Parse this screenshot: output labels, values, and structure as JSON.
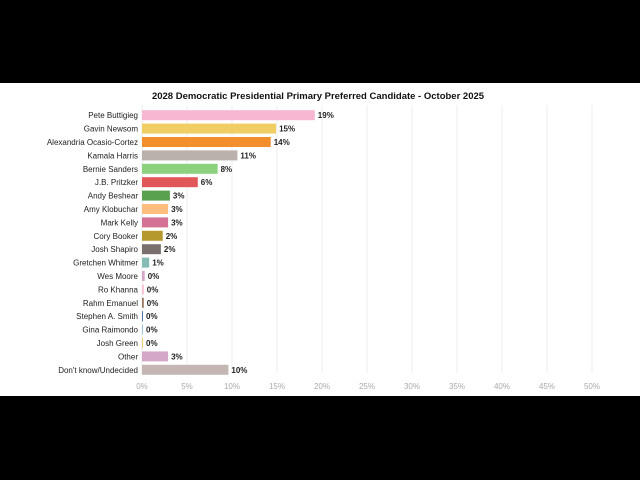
{
  "chart_data": {
    "type": "bar",
    "orientation": "horizontal",
    "title": "2028 Democratic Presidential Primary Preferred Candidate - October 2025",
    "xlabel": "",
    "ylabel": "",
    "xlim": [
      0,
      50
    ],
    "grid": true,
    "legend": "none",
    "ticks": [
      "0%",
      "5%",
      "10%",
      "15%",
      "20%",
      "25%",
      "30%",
      "35%",
      "40%",
      "45%",
      "50%"
    ],
    "tick_values": [
      0,
      5,
      10,
      15,
      20,
      25,
      30,
      35,
      40,
      45,
      50
    ],
    "categories": [
      "Pete Buttigieg",
      "Gavin Newsom",
      "Alexandria Ocasio-Cortez",
      "Kamala Harris",
      "Bernie Sanders",
      "J.B. Pritzker",
      "Andy Beshear",
      "Amy Klobuchar",
      "Mark Kelly",
      "Cory Booker",
      "Josh Shapiro",
      "Gretchen Whitmer",
      "Wes Moore",
      "Ro Khanna",
      "Rahm Emanuel",
      "Stephen A. Smith",
      "Gina Raimondo",
      "Josh Green",
      "Other",
      "Don't know/Undecided"
    ],
    "values": [
      19,
      15,
      14,
      11,
      8,
      6,
      3,
      3,
      3,
      2,
      2,
      1,
      0,
      0,
      0,
      0,
      0,
      0,
      3,
      10
    ],
    "bar_values": [
      19.2,
      14.9,
      14.3,
      10.6,
      8.4,
      6.2,
      3.1,
      2.9,
      2.9,
      2.3,
      2.1,
      0.8,
      0.3,
      0.2,
      0.2,
      0.1,
      0.1,
      0.1,
      2.9,
      9.6
    ],
    "value_labels": [
      "19%",
      "15%",
      "14%",
      "11%",
      "8%",
      "6%",
      "3%",
      "3%",
      "3%",
      "2%",
      "2%",
      "1%",
      "0%",
      "0%",
      "0%",
      "0%",
      "0%",
      "0%",
      "3%",
      "10%"
    ],
    "colors": [
      "#f7b6d2",
      "#f1ce63",
      "#f28e2b",
      "#bab0ac",
      "#8cd17d",
      "#e15759",
      "#59a14f",
      "#ffbe7d",
      "#d37295",
      "#b6992d",
      "#79706e",
      "#86bcb6",
      "#d4a6c8",
      "#fabfd2",
      "#9d7660",
      "#4e79a7",
      "#a0cbe8",
      "#f1ce63",
      "#d4a6c8",
      "#c4b7b3"
    ]
  }
}
